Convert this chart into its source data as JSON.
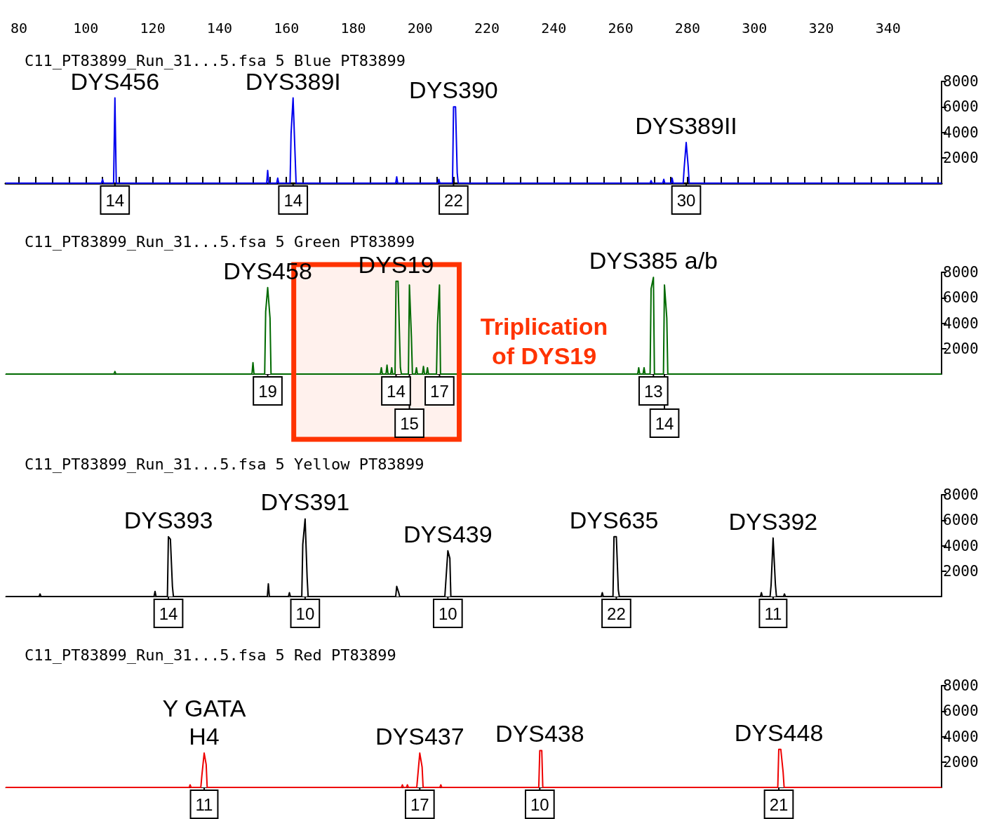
{
  "chart_data": [
    {
      "type": "line",
      "title": "C11_PT83899_Run_31...5.fsa 5 Blue PT83899",
      "xlim": [
        76,
        356
      ],
      "xticks": [
        80,
        {
          "value": 85,
          "label": null
        },
        {
          "value": 90,
          "label": null
        },
        {
          "value": 95,
          "label": null
        },
        100,
        {
          "value": 105,
          "label": null
        },
        {
          "value": 110,
          "label": null
        },
        {
          "value": 115,
          "label": null
        },
        120,
        {
          "value": 125,
          "label": null
        },
        {
          "value": 130,
          "label": null
        },
        {
          "value": 135,
          "label": null
        },
        140,
        {
          "value": 145,
          "label": null
        },
        {
          "value": 150,
          "label": null
        },
        {
          "value": 155,
          "label": null
        },
        160,
        {
          "value": 165,
          "label": null
        },
        {
          "value": 170,
          "label": null
        },
        {
          "value": 175,
          "label": null
        },
        180,
        {
          "value": 185,
          "label": null
        },
        {
          "value": 190,
          "label": null
        },
        {
          "value": 195,
          "label": null
        },
        200,
        {
          "value": 205,
          "label": null
        },
        {
          "value": 210,
          "label": null
        },
        {
          "value": 215,
          "label": null
        },
        220,
        {
          "value": 225,
          "label": null
        },
        {
          "value": 230,
          "label": null
        },
        {
          "value": 235,
          "label": null
        },
        240,
        {
          "value": 245,
          "label": null
        },
        {
          "value": 250,
          "label": null
        },
        {
          "value": 255,
          "label": null
        },
        260,
        {
          "value": 265,
          "label": null
        },
        {
          "value": 270,
          "label": null
        },
        {
          "value": 275,
          "label": null
        },
        280,
        {
          "value": 285,
          "label": null
        },
        {
          "value": 290,
          "label": null
        },
        {
          "value": 295,
          "label": null
        },
        300,
        {
          "value": 305,
          "label": null
        },
        {
          "value": 310,
          "label": null
        },
        {
          "value": 315,
          "label": null
        },
        320,
        {
          "value": 325,
          "label": null
        },
        {
          "value": 330,
          "label": null
        },
        {
          "value": 335,
          "label": null
        },
        340,
        {
          "value": 345,
          "label": null
        },
        {
          "value": 350,
          "label": null
        },
        {
          "value": 355,
          "label": null
        }
      ],
      "ylim": [
        0,
        8000
      ],
      "yticks": [
        2000,
        4000,
        6000,
        8000
      ],
      "annotations": [
        {
          "text": "DYS456",
          "x": 108.7,
          "y": 6700
        },
        {
          "text": "DYS389I",
          "x": 162.0,
          "y": 6700
        },
        {
          "text": "DYS390",
          "x": 210.0,
          "y": 6000
        },
        {
          "text": "DYS389II",
          "x": 279.6,
          "y": 3200
        },
        {
          "text": "14",
          "x": 108.7,
          "y": 0
        },
        {
          "text": "14",
          "x": 162.0,
          "y": 0
        },
        {
          "text": "22",
          "x": 210.0,
          "y": 0
        },
        {
          "text": "30",
          "x": 279.6,
          "y": 0
        }
      ],
      "series": [
        {
          "color": "#0000ee",
          "x": [
            76,
            104.7,
            105.0,
            105.3,
            108.3,
            108.7,
            109.1,
            154.1,
            154.4,
            154.7,
            157.1,
            157.4,
            157.7,
            161.1,
            161.4,
            162.0,
            162.6,
            162.9,
            192.7,
            193.0,
            193.3,
            205.3,
            205.6,
            205.9,
            209.7,
            210.0,
            210.6,
            211.1,
            211.4,
            268.8,
            269.1,
            269.4,
            272.6,
            272.9,
            273.2,
            275.1,
            275.4,
            275.7,
            278.7,
            279.0,
            279.6,
            280.2,
            280.5,
            356
          ],
          "values": [
            0,
            0,
            300,
            0,
            0,
            6700,
            0,
            0,
            1000,
            0,
            0,
            400,
            0,
            0,
            3900,
            6700,
            2200,
            0,
            0,
            500,
            0,
            0,
            300,
            0,
            0,
            6000,
            6000,
            800,
            0,
            0,
            200,
            0,
            0,
            300,
            0,
            0,
            400,
            0,
            0,
            1200,
            3200,
            1300,
            0,
            0
          ]
        }
      ]
    },
    {
      "type": "line",
      "title": "C11_PT83899_Run_31...5.fsa 5 Green PT83899",
      "xlim": [
        76,
        356
      ],
      "tick_labels": "y",
      "ylim": [
        0,
        8000
      ],
      "yticks": [
        2000,
        4000,
        6000,
        8000
      ],
      "annotations": [
        {
          "text": "DYS458",
          "x": 154.4,
          "y": 6800
        },
        {
          "text": "DYS19",
          "x": 192.8,
          "y": 7300
        },
        {
          "text": "DYS385 a/b",
          "x": 269.8,
          "y": 7600
        },
        {
          "text": "19",
          "x": 154.4,
          "y": 0
        },
        {
          "text": "14",
          "x": 192.8,
          "y": 0
        },
        {
          "text": "15",
          "x": 196.8,
          "y": 0
        },
        {
          "text": "17",
          "x": 205.8,
          "y": 0
        },
        {
          "text": "13",
          "x": 269.8,
          "y": 0
        },
        {
          "text": "14",
          "x": 273.1,
          "y": 0
        }
      ],
      "bands": [
        {
          "axis": "x",
          "from": 162.2,
          "to": 211.7,
          "label": "Triplication\nof DYS19",
          "color": "#ff3300"
        }
      ],
      "series": [
        {
          "color": "#006a00",
          "x": [
            76,
            108.4,
            108.7,
            109.0,
            149.7,
            150.0,
            150.3,
            153.5,
            153.8,
            154.4,
            155.1,
            155.4,
            188.1,
            188.4,
            188.7,
            189.8,
            190.1,
            190.4,
            191.2,
            191.5,
            191.8,
            192.5,
            192.8,
            193.4,
            194.1,
            194.4,
            196.5,
            196.8,
            197.4,
            197.7,
            198.6,
            198.9,
            199.2,
            200.7,
            201.0,
            201.3,
            201.9,
            202.2,
            202.5,
            204.9,
            205.2,
            205.8,
            206.1,
            265.1,
            265.4,
            265.7,
            266.7,
            267.0,
            267.3,
            268.8,
            269.1,
            269.8,
            270.1,
            272.8,
            273.1,
            273.8,
            274.1,
            356
          ],
          "values": [
            0,
            0,
            200,
            0,
            0,
            900,
            0,
            0,
            4900,
            6800,
            4400,
            0,
            0,
            500,
            0,
            0,
            700,
            0,
            0,
            500,
            0,
            0,
            7300,
            7300,
            500,
            0,
            0,
            7000,
            2900,
            0,
            0,
            500,
            0,
            0,
            600,
            0,
            0,
            500,
            0,
            0,
            3900,
            7000,
            0,
            0,
            500,
            0,
            0,
            500,
            0,
            0,
            6700,
            7600,
            0,
            0,
            7000,
            4400,
            0,
            0
          ]
        }
      ]
    },
    {
      "type": "line",
      "title": "C11_PT83899_Run_31...5.fsa 5 Yellow PT83899",
      "xlim": [
        76,
        356
      ],
      "tick_labels": "y",
      "ylim": [
        0,
        8000
      ],
      "yticks": [
        2000,
        4000,
        6000,
        8000
      ],
      "annotations": [
        {
          "text": "DYS393",
          "x": 124.7,
          "y": 4700
        },
        {
          "text": "DYS391",
          "x": 165.6,
          "y": 6100
        },
        {
          "text": "DYS439",
          "x": 208.3,
          "y": 3600
        },
        {
          "text": "DYS635",
          "x": 258.0,
          "y": 4700
        },
        {
          "text": "DYS392",
          "x": 305.6,
          "y": 4600
        },
        {
          "text": "14",
          "x": 124.7,
          "y": 0
        },
        {
          "text": "10",
          "x": 165.6,
          "y": 0
        },
        {
          "text": "10",
          "x": 208.3,
          "y": 0
        },
        {
          "text": "22",
          "x": 258.7,
          "y": 0
        },
        {
          "text": "11",
          "x": 305.6,
          "y": 0
        }
      ],
      "series": [
        {
          "color": "#000000",
          "x": [
            76,
            86.0,
            86.3,
            86.6,
            120.4,
            120.7,
            121.0,
            124.4,
            124.7,
            125.3,
            125.9,
            126.2,
            154.3,
            154.6,
            154.9,
            160.6,
            160.9,
            161.2,
            164.6,
            164.9,
            165.6,
            166.2,
            166.5,
            192.7,
            193.0,
            193.6,
            193.9,
            207.4,
            207.7,
            208.3,
            208.9,
            209.2,
            254.2,
            254.5,
            254.8,
            257.7,
            258.0,
            258.7,
            259.3,
            259.6,
            301.8,
            302.1,
            302.4,
            304.7,
            305.0,
            305.6,
            306.3,
            306.6,
            308.7,
            309.0,
            309.3,
            356
          ],
          "values": [
            0,
            0,
            200,
            0,
            0,
            400,
            0,
            0,
            4700,
            4500,
            800,
            0,
            0,
            1000,
            0,
            0,
            300,
            0,
            0,
            4100,
            6100,
            1500,
            0,
            0,
            800,
            300,
            0,
            0,
            1200,
            3600,
            3000,
            0,
            0,
            300,
            0,
            0,
            4700,
            4700,
            500,
            0,
            0,
            300,
            0,
            0,
            900,
            4600,
            900,
            0,
            0,
            200,
            0,
            0
          ]
        }
      ]
    },
    {
      "type": "line",
      "title": "C11_PT83899_Run_31...5.fsa 5 Red PT83899",
      "xlim": [
        76,
        356
      ],
      "tick_labels": "y",
      "ylim": [
        0,
        8000
      ],
      "yticks": [
        2000,
        4000,
        6000,
        8000
      ],
      "annotations": [
        {
          "text": "Y GATA\nH4",
          "x": 135.4,
          "y": 2700
        },
        {
          "text": "DYS437",
          "x": 199.9,
          "y": 2700
        },
        {
          "text": "DYS438",
          "x": 235.8,
          "y": 2900
        },
        {
          "text": "DYS448",
          "x": 307.3,
          "y": 3000
        },
        {
          "text": "11",
          "x": 135.4,
          "y": 0
        },
        {
          "text": "17",
          "x": 199.9,
          "y": 0
        },
        {
          "text": "10",
          "x": 235.8,
          "y": 0
        },
        {
          "text": "21",
          "x": 307.3,
          "y": 0
        }
      ],
      "series": [
        {
          "color": "#ee0000",
          "x": [
            76,
            130.9,
            131.2,
            131.5,
            134.4,
            134.7,
            135.4,
            136.0,
            136.3,
            194.4,
            194.7,
            195.0,
            195.9,
            196.2,
            196.5,
            199.0,
            199.3,
            199.9,
            200.6,
            200.9,
            205.9,
            206.2,
            206.5,
            235.5,
            235.8,
            236.4,
            236.7,
            307.0,
            307.3,
            307.9,
            308.6,
            308.9,
            356
          ],
          "values": [
            0,
            0,
            200,
            0,
            0,
            900,
            2700,
            1800,
            0,
            0,
            200,
            0,
            0,
            200,
            0,
            0,
            900,
            2700,
            1600,
            0,
            0,
            200,
            0,
            0,
            2900,
            2900,
            0,
            0,
            3000,
            3000,
            1200,
            0,
            0
          ]
        }
      ]
    }
  ]
}
